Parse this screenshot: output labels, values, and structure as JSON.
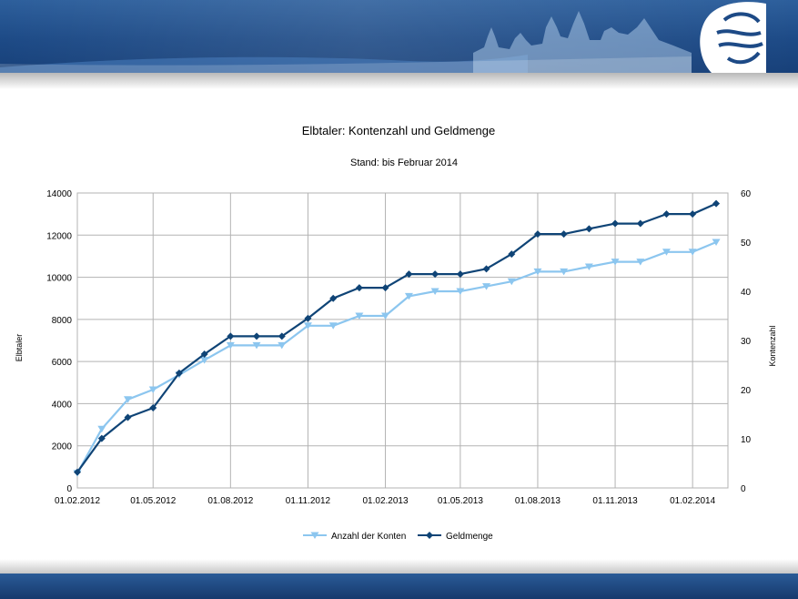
{
  "colors": {
    "banner": "#1d4a86",
    "series_konten": "#8cc6ef",
    "series_geld": "#0f4476",
    "grid": "#b3b3b3"
  },
  "icons": {
    "banner_logo": "elbtaler-logo-icon",
    "banner_art": "city-skyline-icon"
  },
  "chart_data": {
    "type": "line",
    "title": "Elbtaler: Kontenzahl und Geldmenge",
    "subtitle": "Stand: bis Februar 2014",
    "ylabel": "Elbtaler",
    "y2label": "Kontenzahl",
    "ylim": [
      0,
      14000
    ],
    "y2lim": [
      0,
      60
    ],
    "yticks": [
      "0",
      "2000",
      "4000",
      "6000",
      "8000",
      "10000",
      "12000",
      "14000"
    ],
    "y2ticks": [
      "0",
      "10",
      "20",
      "30",
      "40",
      "50",
      "60"
    ],
    "xticks": [
      "01.02.2012",
      "01.05.2012",
      "01.08.2012",
      "01.11.2012",
      "01.02.2013",
      "01.05.2013",
      "01.08.2013",
      "01.11.2013",
      "01.02.2014"
    ],
    "grid": true,
    "legend_position": "bottom",
    "x": [
      "01.02.2012",
      "01.03.2012",
      "01.04.2012",
      "01.05.2012",
      "01.06.2012",
      "01.07.2012",
      "01.08.2012",
      "01.09.2012",
      "01.10.2012",
      "01.11.2012",
      "01.12.2012",
      "01.01.2013",
      "01.02.2013",
      "01.03.2013",
      "01.04.2013",
      "01.05.2013",
      "01.06.2013",
      "01.07.2013",
      "01.08.2013",
      "01.09.2013",
      "01.10.2013",
      "01.11.2013",
      "01.12.2013",
      "01.01.2014",
      "01.02.2014",
      "01.03.2014"
    ],
    "series": [
      {
        "name": "Anzahl der Konten",
        "axis": "right",
        "marker": "triangle-down",
        "values": [
          3,
          12,
          18,
          20,
          23,
          26,
          29,
          29,
          29,
          33,
          33,
          35,
          35,
          39,
          40,
          40,
          41,
          42,
          44,
          44,
          45,
          46,
          46,
          48,
          48,
          50
        ]
      },
      {
        "name": "Geldmenge",
        "axis": "left",
        "marker": "diamond",
        "values": [
          750,
          2350,
          3350,
          3800,
          5450,
          6350,
          7200,
          7200,
          7200,
          8050,
          9000,
          9500,
          9500,
          10150,
          10150,
          10150,
          10400,
          11100,
          12050,
          12050,
          12300,
          12550,
          12550,
          13000,
          13000,
          13500
        ]
      }
    ]
  }
}
